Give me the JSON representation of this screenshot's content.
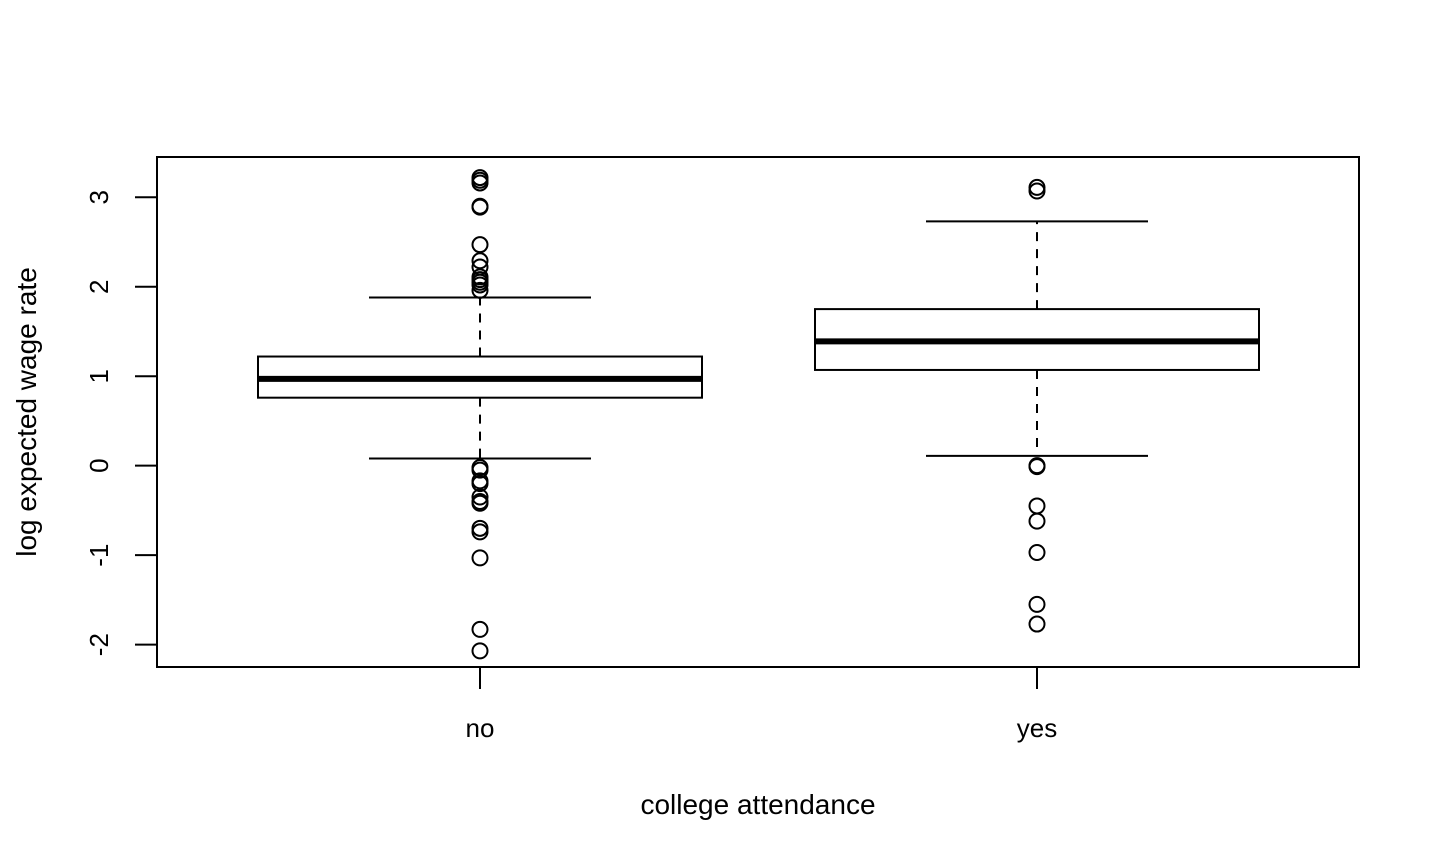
{
  "chart_data": {
    "type": "box",
    "title": "",
    "xlabel": "college attendance",
    "ylabel": "log expected wage rate",
    "categories": [
      "no",
      "yes"
    ],
    "ylim": [
      -2.25,
      3.45
    ],
    "yticks": [
      -2,
      -1,
      0,
      1,
      2,
      3
    ],
    "ytick_labels": [
      "-2",
      "-1",
      "0",
      "1",
      "2",
      "3"
    ],
    "grid": false,
    "boxes": [
      {
        "category": "no",
        "whisker_low": 0.08,
        "q1": 0.76,
        "median": 0.97,
        "q3": 1.22,
        "whisker_high": 1.88,
        "outliers": [
          3.22,
          3.19,
          3.16,
          2.9,
          2.89,
          2.47,
          2.29,
          2.22,
          2.11,
          2.08,
          2.05,
          2.02,
          1.96,
          -0.02,
          -0.05,
          -0.17,
          -0.2,
          -0.35,
          -0.4,
          -0.42,
          -0.7,
          -0.74,
          -1.03,
          -1.83,
          -2.07
        ]
      },
      {
        "category": "yes",
        "whisker_low": 0.11,
        "q1": 1.07,
        "median": 1.39,
        "q3": 1.75,
        "whisker_high": 2.73,
        "outliers": [
          3.11,
          3.07,
          0.0,
          -0.01,
          -0.45,
          -0.62,
          -0.97,
          -1.55,
          -1.77
        ]
      }
    ]
  }
}
